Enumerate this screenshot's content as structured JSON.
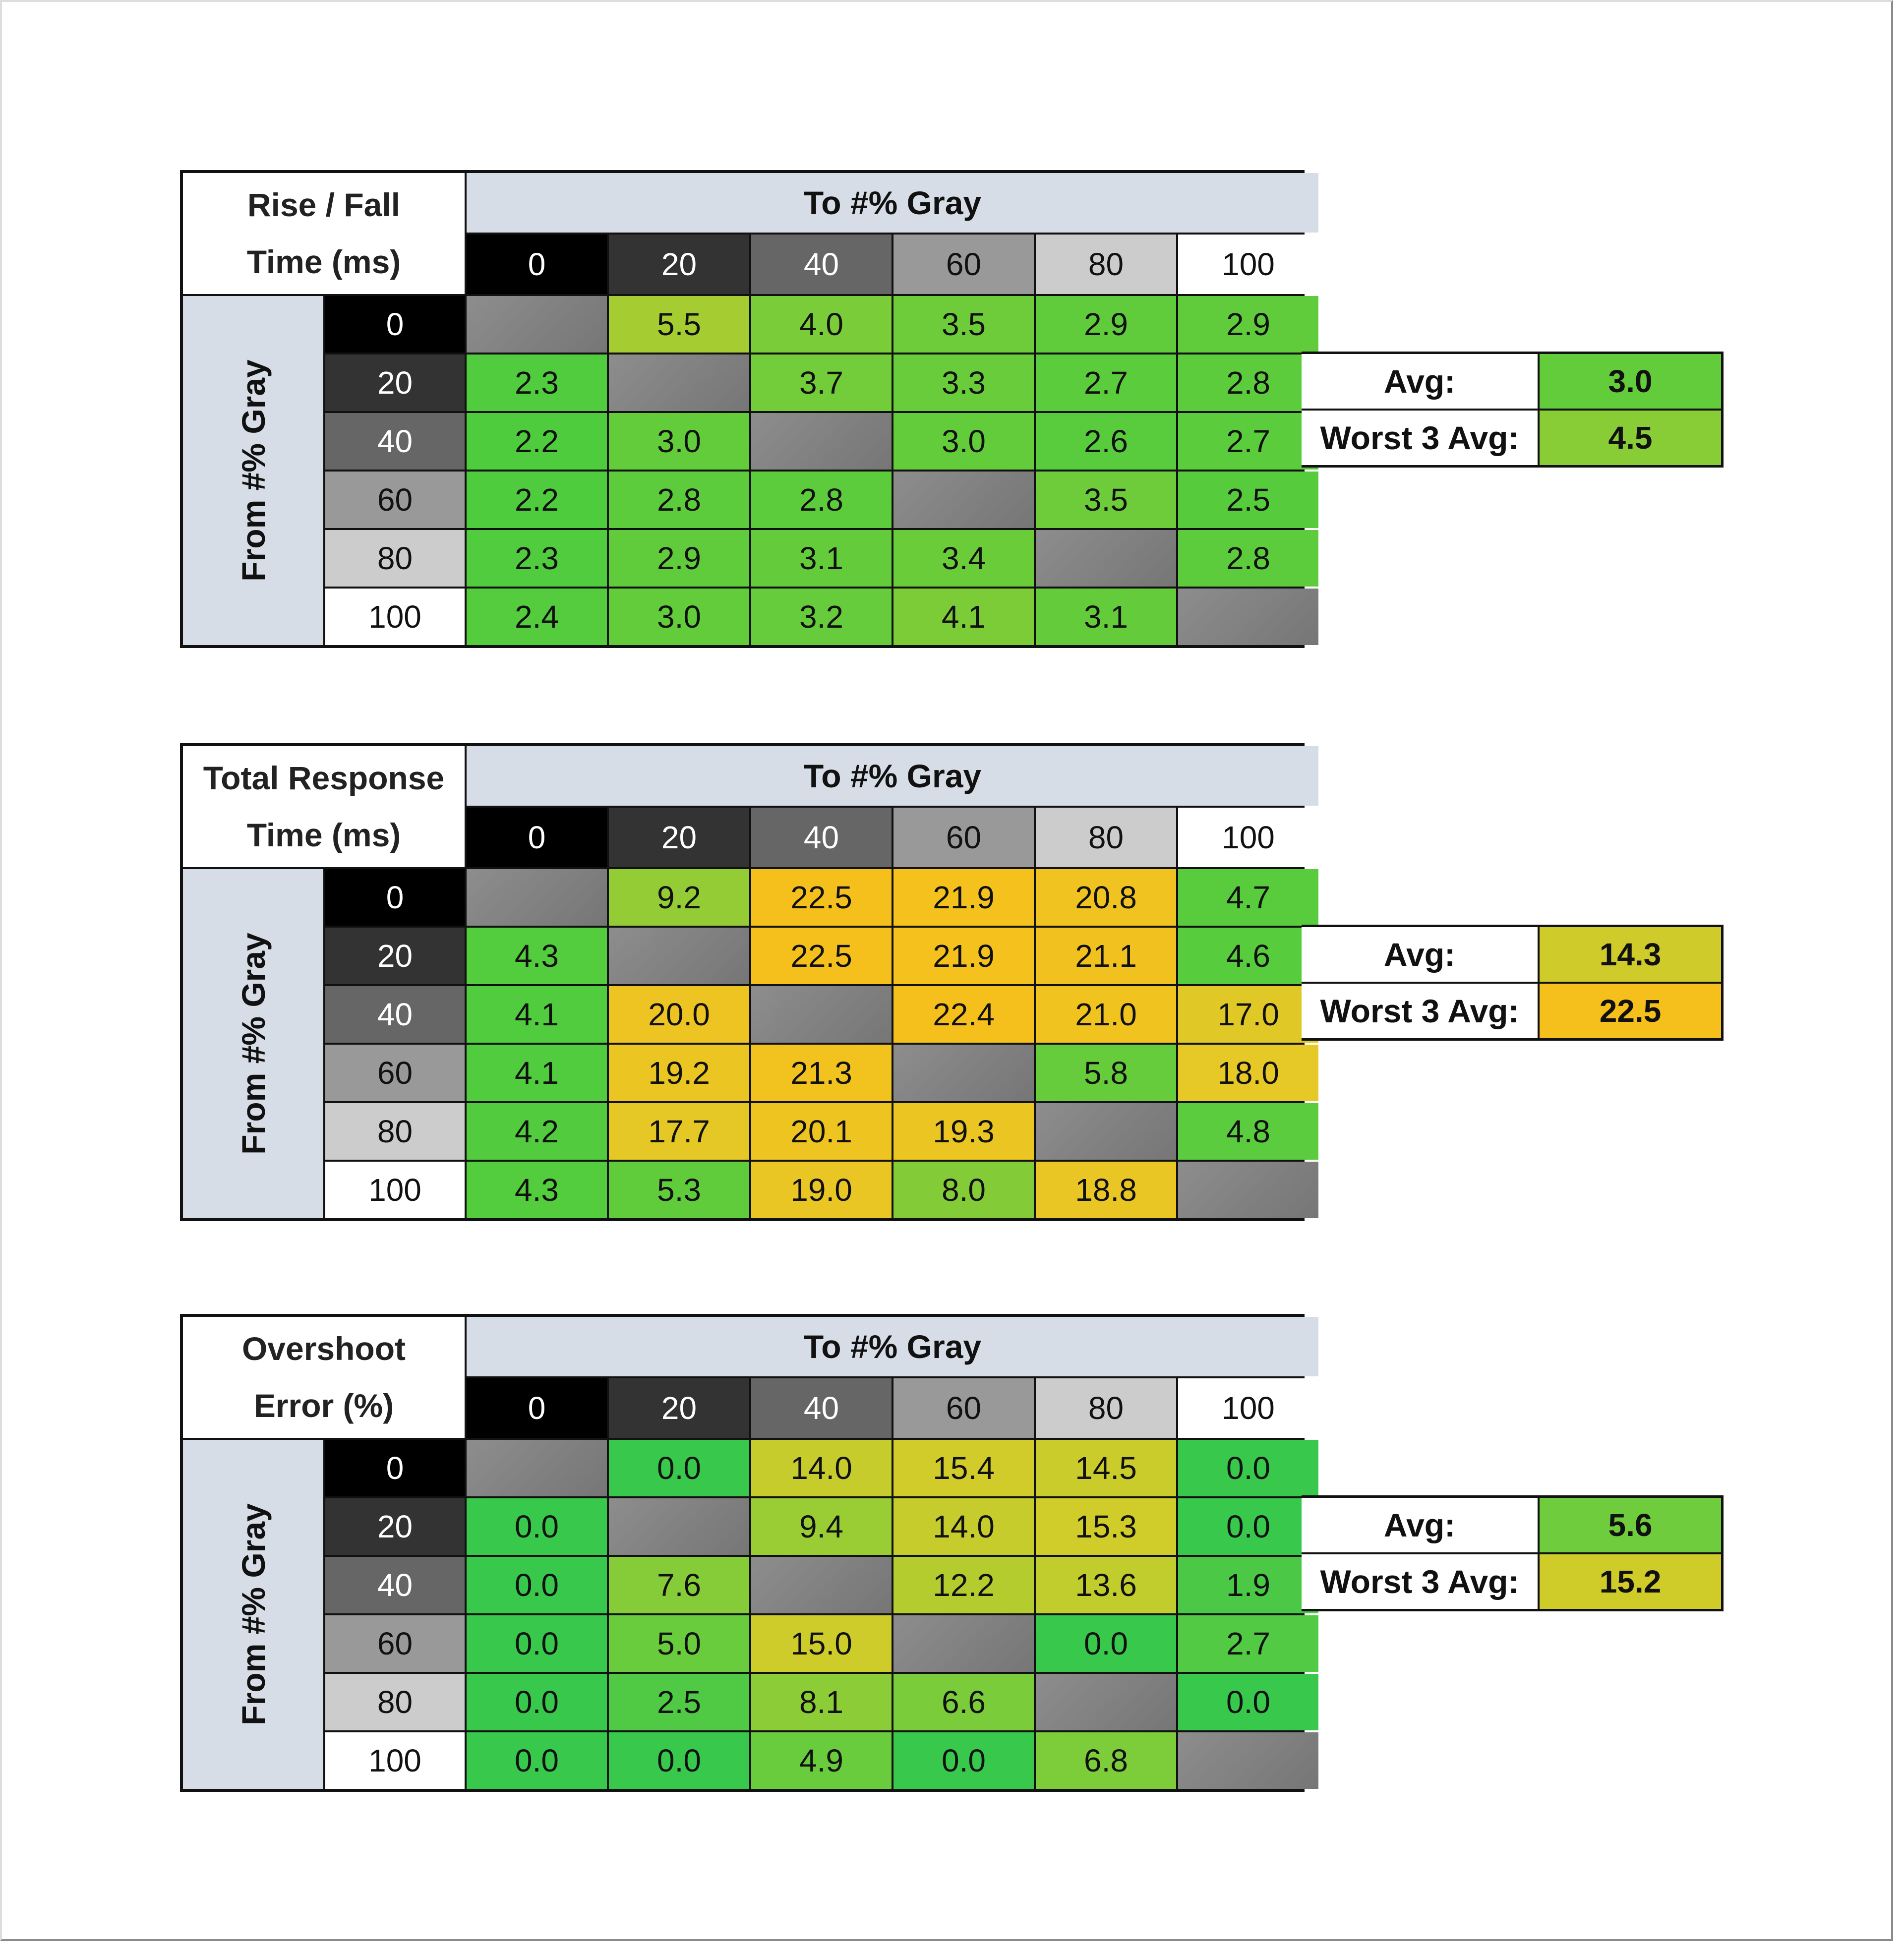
{
  "gray_levels": [
    "0",
    "20",
    "40",
    "60",
    "80",
    "100"
  ],
  "gray_colors": {
    "0": "#000000",
    "20": "#333333",
    "40": "#666666",
    "60": "#999999",
    "80": "#cccccc",
    "100": "#ffffff"
  },
  "to_label": "To #% Gray",
  "from_label": "From #% Gray",
  "avg_label": "Avg:",
  "worst_label": "Worst 3 Avg:",
  "chart_data": [
    {
      "type": "table",
      "title_line1": "Rise / Fall",
      "title_line2": "Time (ms)",
      "columns": [
        "0",
        "20",
        "40",
        "60",
        "80",
        "100"
      ],
      "rows": [
        "0",
        "20",
        "40",
        "60",
        "80",
        "100"
      ],
      "values": [
        [
          null,
          "5.5",
          "4.0",
          "3.5",
          "2.9",
          "2.9"
        ],
        [
          "2.3",
          null,
          "3.7",
          "3.3",
          "2.7",
          "2.8"
        ],
        [
          "2.2",
          "3.0",
          null,
          "3.0",
          "2.6",
          "2.7"
        ],
        [
          "2.2",
          "2.8",
          "2.8",
          null,
          "3.5",
          "2.5"
        ],
        [
          "2.3",
          "2.9",
          "3.1",
          "3.4",
          null,
          "2.8"
        ],
        [
          "2.4",
          "3.0",
          "3.2",
          "4.1",
          "3.1",
          null
        ]
      ],
      "avg": "3.0",
      "worst3_avg": "4.5",
      "color_scale": {
        "min": 2.2,
        "max": 6.0,
        "stops": [
          "#4fcc3e",
          "#7ccc38",
          "#b4cc2e"
        ]
      }
    },
    {
      "type": "table",
      "title_line1": "Total Response",
      "title_line2": "Time (ms)",
      "columns": [
        "0",
        "20",
        "40",
        "60",
        "80",
        "100"
      ],
      "rows": [
        "0",
        "20",
        "40",
        "60",
        "80",
        "100"
      ],
      "values": [
        [
          null,
          "9.2",
          "22.5",
          "21.9",
          "20.8",
          "4.7"
        ],
        [
          "4.3",
          null,
          "22.5",
          "21.9",
          "21.1",
          "4.6"
        ],
        [
          "4.1",
          "20.0",
          null,
          "22.4",
          "21.0",
          "17.0"
        ],
        [
          "4.1",
          "19.2",
          "21.3",
          null,
          "5.8",
          "18.0"
        ],
        [
          "4.2",
          "17.7",
          "20.1",
          "19.3",
          null,
          "4.8"
        ],
        [
          "4.3",
          "5.3",
          "19.0",
          "8.0",
          "18.8",
          null
        ]
      ],
      "avg": "14.3",
      "worst3_avg": "22.5",
      "color_scale": {
        "min": 4.0,
        "max": 22.5,
        "stops": [
          "#4fcc3e",
          "#8ccc36",
          "#c8cc2c",
          "#e6c826",
          "#f6c01c"
        ]
      }
    },
    {
      "type": "table",
      "title_line1": "Overshoot",
      "title_line2": "Error (%)",
      "columns": [
        "0",
        "20",
        "40",
        "60",
        "80",
        "100"
      ],
      "rows": [
        "0",
        "20",
        "40",
        "60",
        "80",
        "100"
      ],
      "values": [
        [
          null,
          "0.0",
          "14.0",
          "15.4",
          "14.5",
          "0.0"
        ],
        [
          "0.0",
          null,
          "9.4",
          "14.0",
          "15.3",
          "0.0"
        ],
        [
          "0.0",
          "7.6",
          null,
          "12.2",
          "13.6",
          "1.9"
        ],
        [
          "0.0",
          "5.0",
          "15.0",
          null,
          "0.0",
          "2.7"
        ],
        [
          "0.0",
          "2.5",
          "8.1",
          "6.6",
          null,
          "0.0"
        ],
        [
          "0.0",
          "0.0",
          "4.9",
          "0.0",
          "6.8",
          null
        ]
      ],
      "avg": "5.6",
      "worst3_avg": "15.2",
      "color_scale": {
        "min": 0.0,
        "max": 16.0,
        "stops": [
          "#38c84c",
          "#6ccc3c",
          "#a8cc32",
          "#d6cc28"
        ]
      }
    }
  ]
}
